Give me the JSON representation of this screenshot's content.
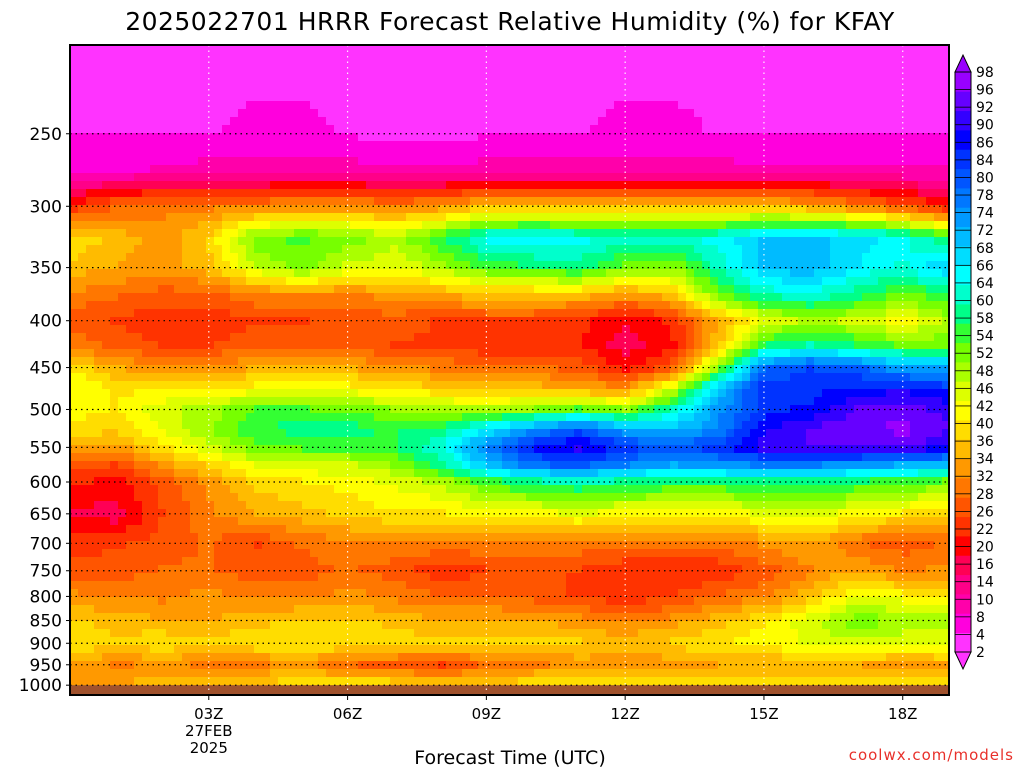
{
  "chart_data": {
    "type": "heatmap",
    "title": "2025022701 HRRR Forecast Relative Humidity (%) for KFAY",
    "xlabel": "Forecast Time (UTC)",
    "ylabel": "",
    "x_ticks": [
      {
        "hour": 3,
        "label": "03Z"
      },
      {
        "hour": 6,
        "label": "06Z"
      },
      {
        "hour": 9,
        "label": "09Z"
      },
      {
        "hour": 12,
        "label": "12Z"
      },
      {
        "hour": 15,
        "label": "15Z"
      },
      {
        "hour": 18,
        "label": "18Z"
      }
    ],
    "date_label_lines": [
      "27FEB",
      "2025"
    ],
    "y_ticks": [
      250,
      300,
      350,
      400,
      450,
      500,
      550,
      600,
      650,
      700,
      750,
      800,
      850,
      900,
      950,
      1000
    ],
    "y_scale": "log-pressure (inverted)",
    "xlim": [
      0,
      19
    ],
    "ylim": [
      1025,
      200
    ],
    "ground_level": 1000,
    "grid": true,
    "colorbar_labels": [
      2,
      4,
      8,
      10,
      14,
      16,
      20,
      22,
      26,
      28,
      32,
      34,
      36,
      40,
      42,
      46,
      48,
      52,
      54,
      58,
      60,
      64,
      66,
      68,
      72,
      74,
      78,
      80,
      84,
      86,
      90,
      92,
      96,
      98
    ],
    "colorbar_colors": [
      "#ff33ff",
      "#ff00dd",
      "#ff00aa",
      "#ff0088",
      "#ff0055",
      "#ff0000",
      "#ff3300",
      "#ff5500",
      "#ff7700",
      "#ff9900",
      "#ffbb00",
      "#ffdd00",
      "#ffff00",
      "#ddff00",
      "#aaff00",
      "#77ff00",
      "#33ff33",
      "#00ff88",
      "#00ffcc",
      "#00ffff",
      "#00ddff",
      "#00bbff",
      "#0099ff",
      "#0077ff",
      "#0055ff",
      "#0033ff",
      "#0000ff",
      "#3300ff",
      "#6600ff",
      "#9900ff"
    ],
    "ground_color": "#a0522d",
    "times": [
      0,
      1,
      2,
      3,
      4,
      5,
      6,
      7,
      8,
      9,
      10,
      11,
      12,
      13,
      14,
      15,
      16,
      17,
      18,
      19
    ],
    "levels": [
      200,
      250,
      275,
      300,
      325,
      350,
      375,
      400,
      425,
      450,
      475,
      500,
      525,
      550,
      575,
      600,
      650,
      700,
      750,
      800,
      850,
      900,
      950,
      1000
    ],
    "rh": [
      [
        4,
        4,
        4,
        4,
        4,
        4,
        4,
        4,
        4,
        4,
        4,
        4,
        4,
        4,
        4,
        4,
        4,
        4,
        4,
        4
      ],
      [
        5,
        5,
        5,
        5,
        6,
        6,
        5,
        4,
        4,
        5,
        5,
        5,
        6,
        6,
        5,
        5,
        5,
        5,
        5,
        5
      ],
      [
        8,
        8,
        9,
        10,
        10,
        10,
        10,
        9,
        9,
        10,
        10,
        10,
        10,
        10,
        10,
        9,
        9,
        9,
        9,
        9
      ],
      [
        22,
        28,
        30,
        30,
        30,
        32,
        32,
        30,
        32,
        36,
        36,
        36,
        36,
        36,
        36,
        36,
        34,
        30,
        26,
        20
      ],
      [
        40,
        36,
        32,
        38,
        52,
        54,
        52,
        48,
        56,
        64,
        66,
        64,
        62,
        62,
        64,
        70,
        70,
        68,
        64,
        56
      ],
      [
        36,
        34,
        32,
        36,
        46,
        52,
        46,
        44,
        48,
        54,
        56,
        58,
        52,
        50,
        60,
        70,
        72,
        66,
        62,
        70
      ],
      [
        30,
        28,
        26,
        26,
        30,
        30,
        30,
        32,
        34,
        36,
        36,
        36,
        32,
        36,
        52,
        60,
        62,
        58,
        52,
        56
      ],
      [
        26,
        24,
        22,
        22,
        24,
        24,
        26,
        26,
        24,
        24,
        24,
        22,
        18,
        22,
        34,
        44,
        48,
        46,
        42,
        48
      ],
      [
        30,
        26,
        24,
        24,
        26,
        26,
        26,
        24,
        24,
        22,
        22,
        22,
        16,
        20,
        36,
        56,
        60,
        56,
        52,
        52
      ],
      [
        40,
        34,
        32,
        32,
        34,
        34,
        34,
        32,
        30,
        28,
        28,
        26,
        20,
        26,
        50,
        78,
        82,
        80,
        72,
        72
      ],
      [
        44,
        40,
        40,
        40,
        42,
        42,
        42,
        40,
        38,
        36,
        36,
        34,
        32,
        46,
        70,
        84,
        84,
        86,
        88,
        84
      ],
      [
        42,
        40,
        46,
        48,
        54,
        54,
        52,
        50,
        48,
        48,
        50,
        54,
        50,
        60,
        74,
        84,
        86,
        92,
        94,
        90
      ],
      [
        40,
        38,
        44,
        50,
        56,
        58,
        58,
        56,
        58,
        66,
        74,
        80,
        72,
        70,
        76,
        88,
        92,
        94,
        96,
        92
      ],
      [
        34,
        32,
        40,
        46,
        52,
        54,
        54,
        56,
        62,
        76,
        86,
        90,
        84,
        80,
        84,
        90,
        92,
        92,
        92,
        88
      ],
      [
        26,
        24,
        32,
        38,
        44,
        46,
        46,
        50,
        58,
        70,
        78,
        80,
        76,
        72,
        74,
        76,
        76,
        74,
        72,
        70
      ],
      [
        22,
        20,
        26,
        32,
        38,
        40,
        42,
        44,
        48,
        54,
        58,
        60,
        58,
        56,
        56,
        58,
        58,
        56,
        54,
        52
      ],
      [
        18,
        16,
        24,
        30,
        34,
        36,
        38,
        40,
        40,
        42,
        42,
        44,
        42,
        42,
        42,
        44,
        46,
        42,
        40,
        38
      ],
      [
        22,
        24,
        26,
        28,
        24,
        28,
        30,
        30,
        30,
        30,
        30,
        30,
        28,
        28,
        28,
        32,
        34,
        28,
        26,
        28
      ],
      [
        26,
        26,
        28,
        28,
        26,
        26,
        28,
        26,
        22,
        24,
        26,
        24,
        22,
        22,
        22,
        26,
        30,
        34,
        30,
        32
      ],
      [
        32,
        30,
        30,
        32,
        30,
        30,
        32,
        30,
        28,
        28,
        26,
        24,
        22,
        24,
        28,
        30,
        36,
        44,
        42,
        40
      ],
      [
        38,
        36,
        34,
        34,
        36,
        38,
        38,
        36,
        34,
        34,
        34,
        32,
        30,
        32,
        36,
        40,
        46,
        52,
        50,
        48
      ],
      [
        40,
        38,
        40,
        38,
        40,
        40,
        40,
        40,
        38,
        38,
        38,
        38,
        36,
        38,
        40,
        42,
        44,
        46,
        44,
        44
      ],
      [
        34,
        30,
        32,
        30,
        30,
        32,
        28,
        26,
        24,
        28,
        30,
        32,
        32,
        32,
        34,
        34,
        34,
        34,
        32,
        34
      ],
      [
        34,
        34,
        36,
        36,
        38,
        40,
        40,
        40,
        38,
        38,
        40,
        42,
        42,
        40,
        40,
        40,
        40,
        40,
        40,
        40
      ]
    ]
  },
  "credit": "coolwx.com/models"
}
